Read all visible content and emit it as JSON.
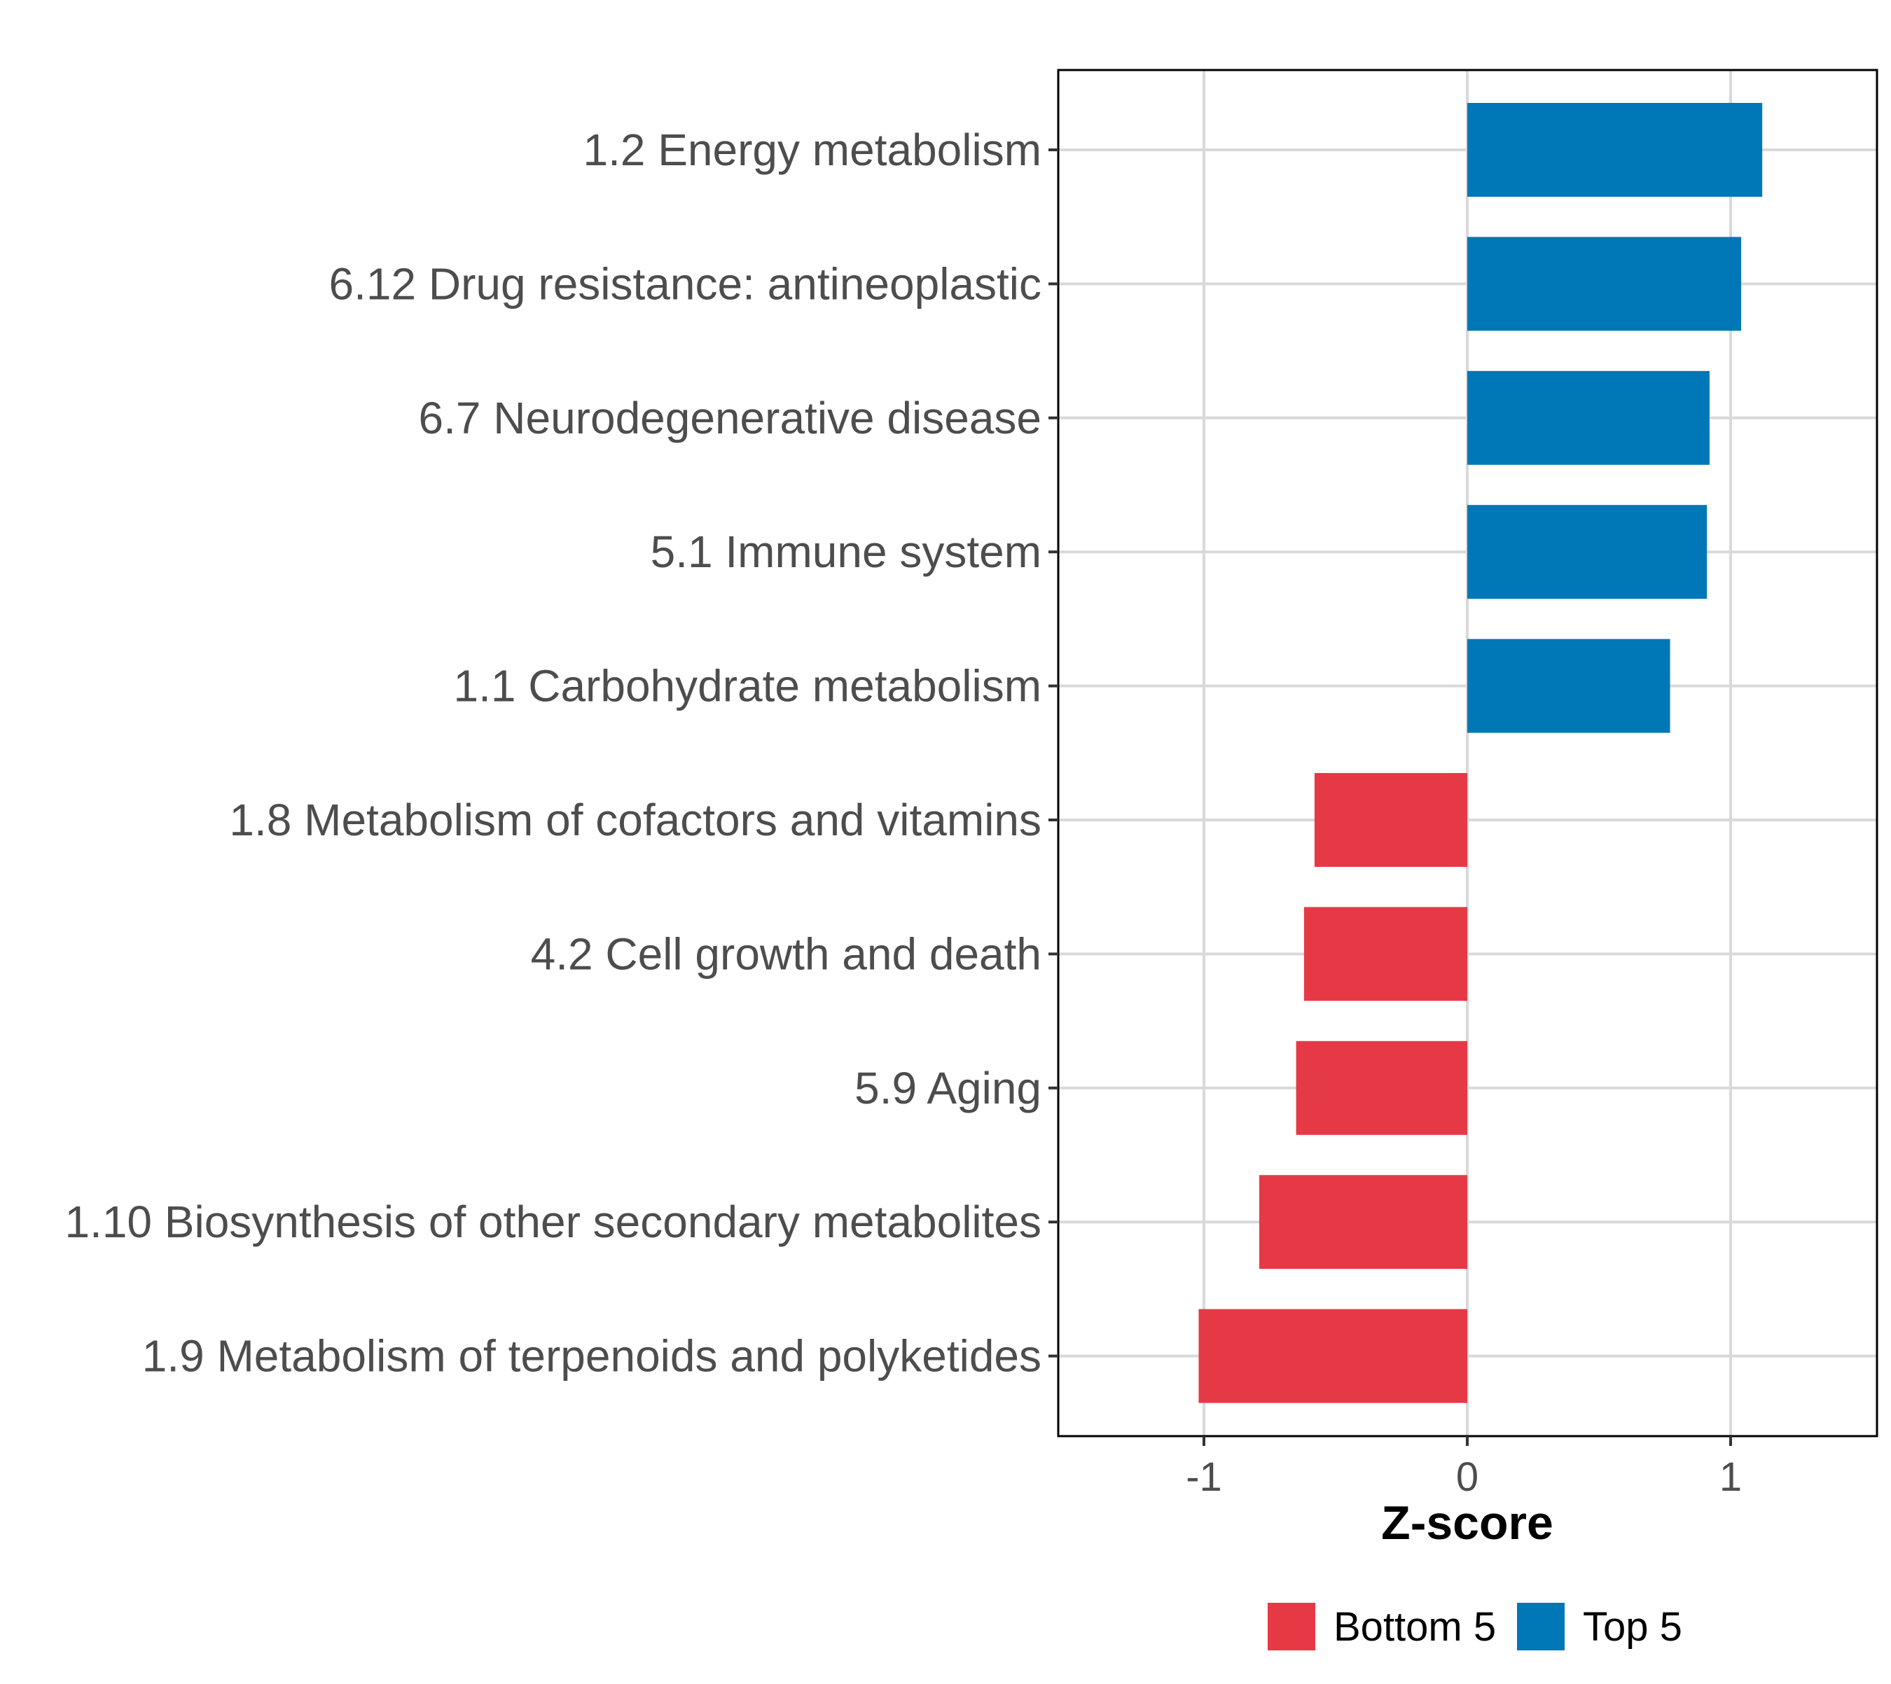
{
  "chart_data": {
    "type": "bar",
    "orientation": "horizontal",
    "title": "",
    "xlabel": "Z-score",
    "ylabel": "",
    "xlim": [
      -1.55,
      1.57
    ],
    "xticks": [
      -1,
      0,
      1
    ],
    "xtick_labels": [
      "-1",
      "0",
      "1"
    ],
    "grid": true,
    "legend_position": "bottom",
    "categories": [
      "1.2 Energy metabolism",
      "6.12 Drug resistance: antineoplastic",
      "6.7 Neurodegenerative disease",
      "5.1 Immune system",
      "1.1 Carbohydrate metabolism",
      "1.8 Metabolism of cofactors and vitamins",
      "4.2 Cell growth and death",
      "5.9 Aging",
      "1.10 Biosynthesis of other secondary metabolites",
      "1.9 Metabolism of terpenoids and polyketides"
    ],
    "values": [
      1.12,
      1.04,
      0.92,
      0.91,
      0.77,
      -0.58,
      -0.62,
      -0.65,
      -0.79,
      -1.02
    ],
    "groups": [
      "Top 5",
      "Top 5",
      "Top 5",
      "Top 5",
      "Top 5",
      "Bottom 5",
      "Bottom 5",
      "Bottom 5",
      "Bottom 5",
      "Bottom 5"
    ],
    "legend": [
      {
        "name": "Bottom 5",
        "color": "#E63946"
      },
      {
        "name": "Top 5",
        "color": "#0077B6"
      }
    ]
  }
}
